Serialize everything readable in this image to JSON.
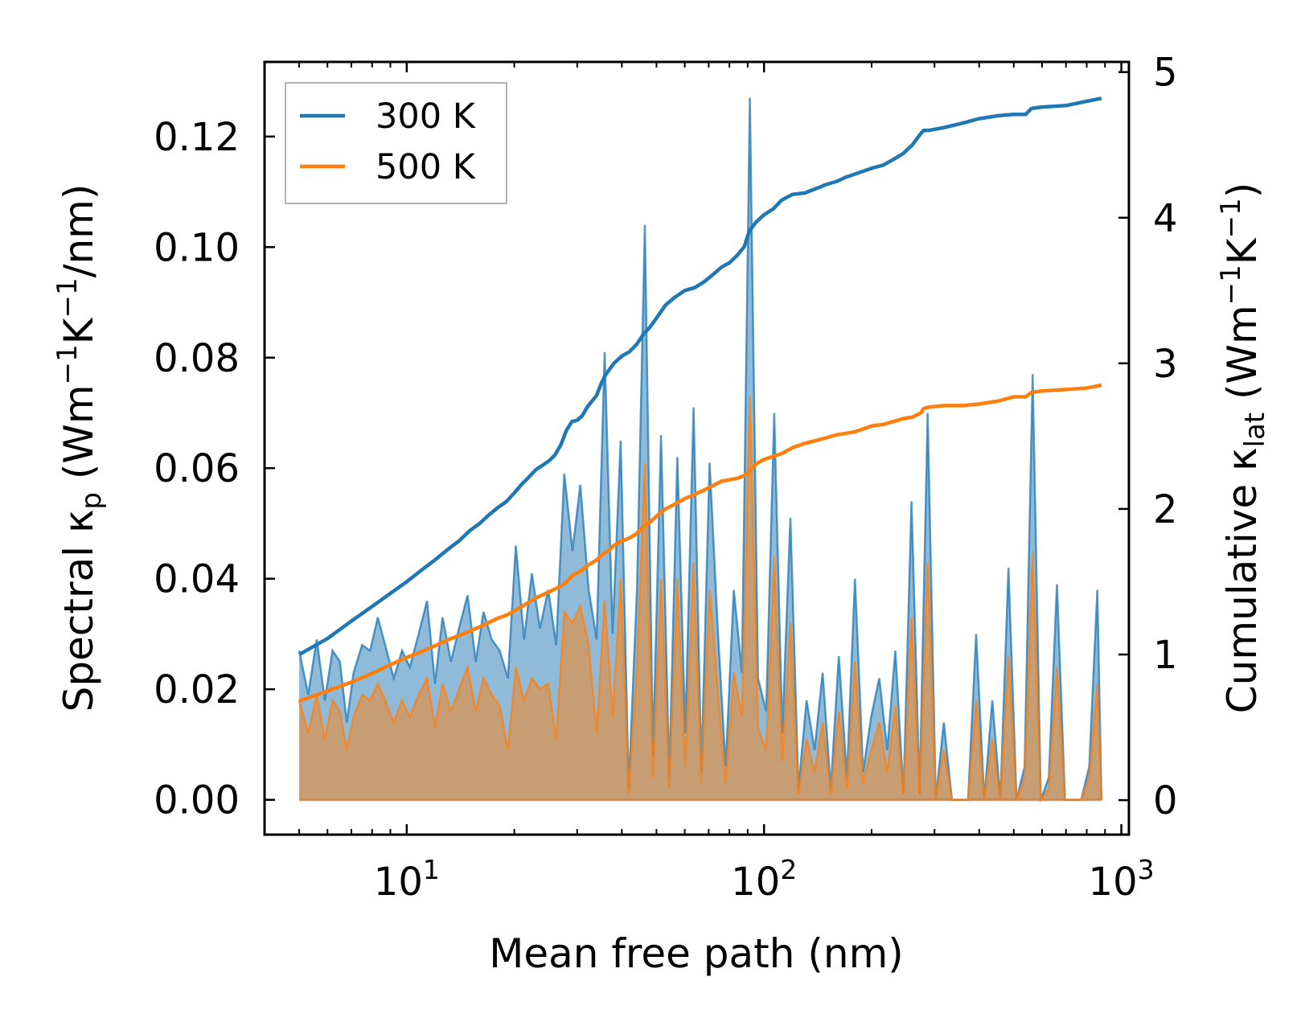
{
  "chart_data": {
    "type": "line",
    "xscale": "log",
    "xlabel": "Mean free path (nm)",
    "ylabel_left": {
      "pre": "Spectral ",
      "kappa": "κ",
      "sub": "p",
      "post1": " (Wm",
      "sup1": "−1",
      "mid": "K",
      "sup2": "−1",
      "post2": "/nm)"
    },
    "ylabel_right": {
      "pre": "Cumulative ",
      "kappa": "κ",
      "sub": "lat",
      "post1": " (Wm",
      "sup1": "−1",
      "mid": "K",
      "sup2": "−1",
      "post2": ")"
    },
    "xlim": [
      4.0,
      1050
    ],
    "ylim_left": [
      -0.0063,
      0.1335
    ],
    "ylim_right": [
      -0.237,
      5.07
    ],
    "x_ticks": [
      {
        "base": "10",
        "exp": "1",
        "value": 10
      },
      {
        "base": "10",
        "exp": "2",
        "value": 100
      },
      {
        "base": "10",
        "exp": "3",
        "value": 1000
      }
    ],
    "y_left_ticks": [
      "0.00",
      "0.02",
      "0.04",
      "0.06",
      "0.08",
      "0.10",
      "0.12"
    ],
    "y_left_tick_values": [
      0.0,
      0.02,
      0.04,
      0.06,
      0.08,
      0.1,
      0.12
    ],
    "y_right_ticks": [
      "0",
      "1",
      "2",
      "3",
      "4",
      "5"
    ],
    "y_right_tick_values": [
      0,
      1,
      2,
      3,
      4,
      5
    ],
    "legend": {
      "position": "top-left",
      "entries": [
        {
          "label": "300 K",
          "color": "#1f77b4"
        },
        {
          "label": "500 K",
          "color": "#ff7f0e"
        }
      ]
    },
    "series": [
      {
        "name": "300 K",
        "color": "#1f77b4",
        "spectral": {
          "x": [
            5.0,
            5.3,
            5.6,
            5.9,
            6.2,
            6.5,
            6.8,
            7.1,
            7.5,
            7.9,
            8.3,
            8.7,
            9.2,
            9.7,
            10.2,
            10.8,
            11.4,
            12.0,
            12.6,
            13.3,
            14.0,
            14.8,
            15.6,
            16.4,
            17.3,
            18.2,
            19.2,
            20.2,
            21.3,
            22.4,
            23.6,
            24.9,
            26.2,
            27.6,
            29.1,
            30.6,
            32.3,
            34.0,
            35.8,
            37.7,
            39.7,
            41.8,
            44.1,
            46.4,
            48.9,
            51.5,
            54.3,
            57.2,
            60.2,
            63.5,
            66.8,
            70.4,
            74.2,
            78.1,
            82.3,
            86.7,
            91.3,
            96.2,
            101.4,
            106.8,
            112.5,
            118.5,
            124.8,
            131.5,
            138.5,
            145.9,
            153.7,
            161.9,
            170.6,
            179.7,
            189.3,
            199.4,
            210.1,
            221.3,
            233.1,
            245.6,
            258.7,
            272.5,
            287.1,
            302.4,
            318.6,
            335.6,
            353.5,
            372.4,
            392.3,
            413.3,
            435.4,
            458.6,
            483.1,
            508.9,
            536.2,
            564.8,
            595.0,
            626.8,
            660.3,
            695.6,
            732.8,
            771.9,
            813.2,
            856.7,
            880.0
          ],
          "y": [
            0.027,
            0.019,
            0.029,
            0.018,
            0.027,
            0.025,
            0.014,
            0.023,
            0.028,
            0.027,
            0.033,
            0.028,
            0.022,
            0.027,
            0.024,
            0.03,
            0.036,
            0.021,
            0.033,
            0.025,
            0.031,
            0.037,
            0.025,
            0.034,
            0.029,
            0.027,
            0.022,
            0.046,
            0.029,
            0.041,
            0.031,
            0.038,
            0.028,
            0.059,
            0.045,
            0.057,
            0.038,
            0.029,
            0.081,
            0.03,
            0.065,
            0.002,
            0.038,
            0.104,
            0.008,
            0.066,
            0.004,
            0.062,
            0.012,
            0.071,
            0.005,
            0.061,
            0.031,
            0.006,
            0.038,
            0.023,
            0.127,
            0.022,
            0.016,
            0.07,
            0.012,
            0.051,
            0.002,
            0.018,
            0.009,
            0.023,
            0.002,
            0.026,
            0.004,
            0.04,
            0.005,
            0.015,
            0.022,
            0.009,
            0.027,
            0.001,
            0.054,
            0.001,
            0.07,
            0.0,
            0.014,
            0.0,
            0.0,
            0.0,
            0.03,
            0.0,
            0.018,
            0.0,
            0.042,
            0.0,
            0.006,
            0.077,
            0.0,
            0.004,
            0.039,
            0.0,
            0.0,
            0.0,
            0.006,
            0.038,
            0.0
          ]
        },
        "cumulative": {
          "x": [
            5.0,
            6.0,
            7.0,
            8.0,
            9.0,
            10.0,
            11.0,
            12.0,
            13.0,
            14.0,
            15.0,
            16.0,
            17.0,
            18.0,
            19.0,
            20.0,
            21.0,
            22.0,
            23.0,
            24.0,
            25.0,
            26.0,
            27.0,
            28.0,
            29.0,
            30.0,
            31.0,
            32.0,
            33.0,
            34.0,
            35.0,
            36.0,
            37.0,
            38.0,
            40.0,
            42.0,
            44.0,
            46.0,
            48.0,
            50.0,
            53.0,
            56.0,
            60.0,
            64.0,
            68.0,
            72.0,
            76.0,
            80.0,
            84.0,
            88.0,
            91.0,
            95.0,
            100.0,
            106.0,
            112.0,
            120.0,
            130.0,
            140.0,
            150.0,
            160.0,
            170.0,
            180.0,
            190.0,
            200.0,
            215.0,
            230.0,
            245.0,
            260.0,
            275.0,
            280.0,
            290.0,
            320.0,
            360.0,
            400.0,
            450.0,
            500.0,
            540.0,
            560.0,
            600.0,
            700.0,
            800.0,
            880.0
          ],
          "y": [
            1.0,
            1.11,
            1.23,
            1.33,
            1.42,
            1.5,
            1.58,
            1.65,
            1.72,
            1.78,
            1.85,
            1.9,
            1.96,
            2.01,
            2.05,
            2.11,
            2.17,
            2.22,
            2.27,
            2.3,
            2.33,
            2.37,
            2.44,
            2.54,
            2.6,
            2.61,
            2.64,
            2.7,
            2.74,
            2.78,
            2.86,
            2.92,
            2.96,
            3.0,
            3.05,
            3.08,
            3.13,
            3.2,
            3.25,
            3.31,
            3.4,
            3.45,
            3.5,
            3.52,
            3.56,
            3.61,
            3.66,
            3.69,
            3.74,
            3.8,
            3.91,
            3.97,
            4.02,
            4.06,
            4.12,
            4.16,
            4.17,
            4.2,
            4.23,
            4.25,
            4.28,
            4.3,
            4.32,
            4.34,
            4.36,
            4.4,
            4.44,
            4.5,
            4.58,
            4.6,
            4.6,
            4.62,
            4.65,
            4.68,
            4.7,
            4.71,
            4.71,
            4.75,
            4.76,
            4.77,
            4.8,
            4.82
          ]
        }
      },
      {
        "name": "500 K",
        "color": "#ff7f0e",
        "spectral": {
          "x": [
            5.0,
            5.3,
            5.6,
            5.9,
            6.2,
            6.5,
            6.8,
            7.1,
            7.5,
            7.9,
            8.3,
            8.7,
            9.2,
            9.7,
            10.2,
            10.8,
            11.4,
            12.0,
            12.6,
            13.3,
            14.0,
            14.8,
            15.6,
            16.4,
            17.3,
            18.2,
            19.2,
            20.2,
            21.3,
            22.4,
            23.6,
            24.9,
            26.2,
            27.6,
            29.1,
            30.6,
            32.3,
            34.0,
            35.8,
            37.7,
            39.7,
            41.8,
            44.1,
            46.4,
            48.9,
            51.5,
            54.3,
            57.2,
            60.2,
            63.5,
            66.8,
            70.4,
            74.2,
            78.1,
            82.3,
            86.7,
            91.3,
            96.2,
            101.4,
            106.8,
            112.5,
            118.5,
            124.8,
            131.5,
            138.5,
            145.9,
            153.7,
            161.9,
            170.6,
            179.7,
            189.3,
            199.4,
            210.1,
            221.3,
            233.1,
            245.6,
            258.7,
            272.5,
            287.1,
            302.4,
            318.6,
            335.6,
            353.5,
            372.4,
            392.3,
            413.3,
            435.4,
            458.6,
            483.1,
            508.9,
            536.2,
            564.8,
            595.0,
            626.8,
            660.3,
            695.6,
            732.8,
            771.9,
            813.2,
            856.7,
            880.0
          ],
          "y": [
            0.018,
            0.012,
            0.019,
            0.011,
            0.018,
            0.016,
            0.009,
            0.015,
            0.019,
            0.018,
            0.021,
            0.018,
            0.014,
            0.018,
            0.015,
            0.019,
            0.022,
            0.013,
            0.021,
            0.016,
            0.02,
            0.024,
            0.016,
            0.022,
            0.019,
            0.017,
            0.009,
            0.024,
            0.018,
            0.022,
            0.02,
            0.021,
            0.011,
            0.034,
            0.032,
            0.035,
            0.028,
            0.012,
            0.036,
            0.015,
            0.04,
            0.001,
            0.024,
            0.061,
            0.004,
            0.04,
            0.002,
            0.04,
            0.006,
            0.043,
            0.003,
            0.038,
            0.02,
            0.003,
            0.023,
            0.015,
            0.073,
            0.013,
            0.009,
            0.044,
            0.007,
            0.032,
            0.001,
            0.011,
            0.005,
            0.014,
            0.001,
            0.016,
            0.002,
            0.025,
            0.003,
            0.009,
            0.014,
            0.005,
            0.017,
            0.001,
            0.033,
            0.001,
            0.043,
            0.0,
            0.009,
            0.0,
            0.0,
            0.0,
            0.018,
            0.0,
            0.011,
            0.0,
            0.026,
            0.0,
            0.004,
            0.045,
            0.0,
            0.002,
            0.024,
            0.0,
            0.0,
            0.0,
            0.004,
            0.021,
            0.0
          ]
        },
        "cumulative": {
          "x": [
            5.0,
            6.0,
            7.0,
            8.0,
            9.0,
            10.0,
            11.0,
            12.0,
            13.0,
            14.0,
            15.0,
            16.0,
            17.0,
            18.0,
            19.0,
            20.0,
            21.0,
            22.0,
            23.0,
            24.0,
            25.0,
            26.0,
            27.0,
            28.0,
            29.0,
            30.0,
            31.0,
            32.0,
            33.0,
            34.0,
            35.0,
            36.0,
            37.0,
            38.0,
            40.0,
            42.0,
            44.0,
            46.0,
            48.0,
            50.0,
            53.0,
            56.0,
            60.0,
            64.0,
            68.0,
            72.0,
            76.0,
            80.0,
            84.0,
            88.0,
            91.0,
            95.0,
            100.0,
            106.0,
            112.0,
            120.0,
            130.0,
            140.0,
            150.0,
            160.0,
            170.0,
            180.0,
            190.0,
            200.0,
            215.0,
            230.0,
            245.0,
            260.0,
            275.0,
            280.0,
            290.0,
            320.0,
            360.0,
            400.0,
            450.0,
            500.0,
            540.0,
            560.0,
            600.0,
            700.0,
            800.0,
            880.0
          ],
          "y": [
            0.68,
            0.75,
            0.81,
            0.87,
            0.93,
            0.98,
            1.02,
            1.06,
            1.1,
            1.13,
            1.16,
            1.19,
            1.22,
            1.25,
            1.27,
            1.3,
            1.33,
            1.36,
            1.39,
            1.41,
            1.43,
            1.45,
            1.47,
            1.5,
            1.54,
            1.56,
            1.58,
            1.61,
            1.63,
            1.65,
            1.68,
            1.7,
            1.72,
            1.75,
            1.78,
            1.8,
            1.83,
            1.88,
            1.91,
            1.95,
            2.0,
            2.03,
            2.07,
            2.1,
            2.13,
            2.16,
            2.19,
            2.2,
            2.21,
            2.23,
            2.26,
            2.31,
            2.34,
            2.36,
            2.38,
            2.42,
            2.45,
            2.47,
            2.49,
            2.51,
            2.52,
            2.53,
            2.55,
            2.57,
            2.58,
            2.6,
            2.62,
            2.63,
            2.66,
            2.69,
            2.7,
            2.71,
            2.71,
            2.72,
            2.74,
            2.77,
            2.77,
            2.8,
            2.81,
            2.82,
            2.83,
            2.85
          ]
        }
      }
    ]
  }
}
